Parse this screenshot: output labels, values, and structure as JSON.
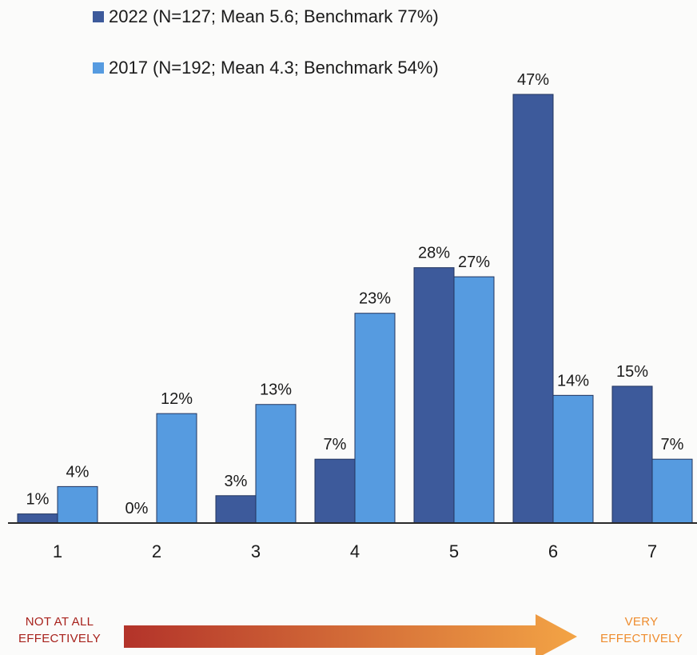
{
  "chart_data": {
    "type": "bar",
    "categories": [
      "1",
      "2",
      "3",
      "4",
      "5",
      "6",
      "7"
    ],
    "series": [
      {
        "name": "2022 (N=127; Mean 5.6; Benchmark 77%)",
        "values": [
          1,
          0,
          3,
          7,
          28,
          47,
          15
        ],
        "labels": [
          "1%",
          "0%",
          "3%",
          "7%",
          "28%",
          "47%",
          "15%"
        ],
        "color": "#3d5a9b"
      },
      {
        "name": "2017 (N=192; Mean 4.3; Benchmark 54%)",
        "values": [
          4,
          12,
          13,
          23,
          27,
          14,
          7
        ],
        "labels": [
          "4%",
          "12%",
          "13%",
          "23%",
          "27%",
          "14%",
          "7%"
        ],
        "color": "#569be0"
      }
    ],
    "ylim": [
      0,
      47
    ],
    "grid": false,
    "legend": "top-left"
  },
  "scale": {
    "low_line1": "NOT AT ALL",
    "low_line2": "EFFECTIVELY",
    "high_line1": "VERY",
    "high_line2": "EFFECTIVELY",
    "arrow_colors": [
      "#b3332a",
      "#f3a445"
    ]
  }
}
